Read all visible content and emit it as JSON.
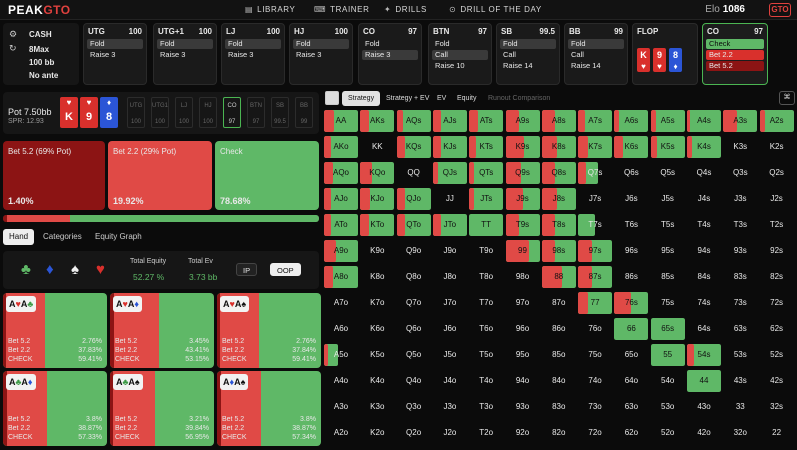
{
  "app": {
    "logo_left": "PEAK",
    "logo_right": "GTO"
  },
  "nav": [
    {
      "icon": "library-icon",
      "glyph": "▤",
      "label": "LIBRARY"
    },
    {
      "icon": "trainer-icon",
      "glyph": "⌨",
      "label": "TRAINER"
    },
    {
      "icon": "drills-icon",
      "glyph": "✦",
      "label": "DRILLS"
    },
    {
      "icon": "drill-of-day-icon",
      "glyph": "⊙",
      "label": "DRILL OF THE DAY"
    }
  ],
  "elo": {
    "label": "Elo",
    "value": "1086"
  },
  "badge": "GTO",
  "game": {
    "type": "CASH",
    "max": "8Max",
    "stacks": "100 bb",
    "ante": "No ante"
  },
  "seats": [
    {
      "pos": "UTG",
      "stack": "100",
      "actions": [
        "Fold",
        "Raise 3"
      ],
      "hl": 0
    },
    {
      "pos": "UTG+1",
      "stack": "100",
      "actions": [
        "Fold",
        "Raise 3"
      ],
      "hl": 0
    },
    {
      "pos": "LJ",
      "stack": "100",
      "actions": [
        "Fold",
        "Raise 3"
      ],
      "hl": 0
    },
    {
      "pos": "HJ",
      "stack": "100",
      "actions": [
        "Fold",
        "Raise 3"
      ],
      "hl": 0
    },
    {
      "pos": "CO",
      "stack": "97",
      "actions": [
        "Fold",
        "Raise 3"
      ],
      "hl": 1
    },
    {
      "pos": "BTN",
      "stack": "97",
      "actions": [
        "Fold",
        "Call",
        "Raise 10"
      ],
      "hl": 1
    },
    {
      "pos": "SB",
      "stack": "99.5",
      "actions": [
        "Fold",
        "Call",
        "Raise 14"
      ],
      "hl": 0
    },
    {
      "pos": "BB",
      "stack": "99",
      "actions": [
        "Fold",
        "Call",
        "Raise 14"
      ],
      "hl": 0
    }
  ],
  "flop": {
    "label": "FLOP",
    "cards": [
      {
        "rank": "K",
        "suit": "♥",
        "color": "#d9302c"
      },
      {
        "rank": "9",
        "suit": "♥",
        "color": "#d9302c"
      },
      {
        "rank": "8",
        "suit": "♦",
        "color": "#2b55d6"
      }
    ]
  },
  "current": {
    "pos": "CO",
    "stack": "97",
    "actions": [
      "Check",
      "Bet 2.2",
      "Bet 5.2"
    ]
  },
  "pot": {
    "label": "Pot",
    "value": "7.50bb",
    "spr": "SPR: 12.93"
  },
  "positions": [
    {
      "name": "UTG",
      "stack": "100"
    },
    {
      "name": "UTG1",
      "stack": "100"
    },
    {
      "name": "LJ",
      "stack": "100"
    },
    {
      "name": "HJ",
      "stack": "100"
    },
    {
      "name": "CO",
      "stack": "97"
    },
    {
      "name": "BTN",
      "stack": "97"
    },
    {
      "name": "SB",
      "stack": "99.5"
    },
    {
      "name": "BB",
      "stack": "99"
    }
  ],
  "strategy": [
    {
      "label": "Bet 5.2 (69% Pot)",
      "pct": "1.40%",
      "value": 1.4,
      "color": "#8c1414"
    },
    {
      "label": "Bet 2.2 (29% Pot)",
      "pct": "19.92%",
      "value": 19.92,
      "color": "#e04a46"
    },
    {
      "label": "Check",
      "pct": "78.68%",
      "value": 78.68,
      "color": "#5fb867"
    }
  ],
  "tabs": [
    "Hand",
    "Categories",
    "Equity Graph"
  ],
  "equity": {
    "eq_label": "Total Equity",
    "eq_value": "52.27 %",
    "ev_label": "Total Ev",
    "ev_value": "3.73 bb",
    "ip": "IP",
    "oop": "OOP"
  },
  "suits": [
    {
      "glyph": "♣",
      "color": "#5fb867"
    },
    {
      "glyph": "♦",
      "color": "#2b55d6"
    },
    {
      "glyph": "♠",
      "color": "#f0f0f0"
    },
    {
      "glyph": "♥",
      "color": "#d9302c"
    }
  ],
  "combos": [
    {
      "c1": "♥",
      "c1col": "#d9302c",
      "c2": "♣",
      "c2col": "#3c9a45",
      "b52": "2.76%",
      "b22": "37.83%",
      "chk": "59.41%",
      "f1": 2.76,
      "f2": 37.83
    },
    {
      "c1": "♥",
      "c1col": "#d9302c",
      "c2": "♦",
      "c2col": "#2b55d6",
      "b52": "3.45%",
      "b22": "43.41%",
      "chk": "53.15%",
      "f1": 3.45,
      "f2": 43.41
    },
    {
      "c1": "♥",
      "c1col": "#d9302c",
      "c2": "♠",
      "c2col": "#111",
      "b52": "2.76%",
      "b22": "37.84%",
      "chk": "59.41%",
      "f1": 2.76,
      "f2": 37.84
    },
    {
      "c1": "♣",
      "c1col": "#3c9a45",
      "c2": "♦",
      "c2col": "#2b55d6",
      "b52": "3.8%",
      "b22": "38.87%",
      "chk": "57.33%",
      "f1": 3.8,
      "f2": 38.87
    },
    {
      "c1": "♣",
      "c1col": "#3c9a45",
      "c2": "♠",
      "c2col": "#111",
      "b52": "3.21%",
      "b22": "39.84%",
      "chk": "56.95%",
      "f1": 3.21,
      "f2": 39.84
    },
    {
      "c1": "♦",
      "c1col": "#2b55d6",
      "c2": "♠",
      "c2col": "#111",
      "b52": "3.8%",
      "b22": "38.87%",
      "chk": "57.34%",
      "f1": 3.8,
      "f2": 38.87
    }
  ],
  "combo_labels": {
    "rank": "A",
    "b52": "Bet 5.2",
    "b22": "Bet 2.2",
    "chk": "CHECK"
  },
  "right_tabs": {
    "strategy": "Strategy",
    "strat_ev": "Strategy + EV",
    "ev": "EV",
    "equity": "Equity",
    "runout": "Runout Comparison"
  },
  "grid": {
    "ranks": [
      "A",
      "K",
      "Q",
      "J",
      "T",
      "9",
      "8",
      "7",
      "6",
      "5",
      "4",
      "3",
      "2"
    ],
    "range_rows": [
      [
        [
          0,
          30,
          100
        ],
        [
          0,
          25,
          100
        ],
        [
          0,
          20,
          100
        ],
        [
          0,
          25,
          100
        ],
        [
          0,
          25,
          100
        ],
        [
          0,
          40,
          100
        ],
        [
          0,
          40,
          100
        ],
        [
          0,
          20,
          100
        ],
        [
          0,
          15,
          100
        ],
        [
          0,
          15,
          100
        ],
        [
          0,
          10,
          100
        ],
        [
          0,
          40,
          100
        ],
        [
          0,
          15,
          100
        ]
      ],
      [
        [
          0,
          20,
          100
        ],
        [
          0,
          0,
          0
        ],
        [
          0,
          25,
          100
        ],
        [
          0,
          25,
          100
        ],
        [
          0,
          20,
          100
        ],
        [
          0,
          55,
          100
        ],
        [
          0,
          45,
          100
        ],
        [
          0,
          30,
          100
        ],
        [
          0,
          25,
          100
        ],
        [
          0,
          20,
          100
        ],
        [
          0,
          15,
          100
        ],
        [
          0,
          0,
          0
        ],
        [
          0,
          0,
          0
        ]
      ],
      [
        [
          0,
          25,
          100
        ],
        [
          0,
          35,
          100
        ],
        [
          0,
          0,
          0
        ],
        [
          0,
          15,
          100
        ],
        [
          0,
          15,
          100
        ],
        [
          0,
          45,
          100
        ],
        [
          0,
          40,
          100
        ],
        [
          0,
          40,
          60
        ],
        [
          0,
          0,
          0
        ],
        [
          0,
          0,
          0
        ],
        [
          0,
          0,
          0
        ],
        [
          0,
          0,
          0
        ],
        [
          0,
          0,
          0
        ]
      ],
      [
        [
          0,
          20,
          100
        ],
        [
          0,
          30,
          100
        ],
        [
          0,
          25,
          100
        ],
        [
          0,
          0,
          0
        ],
        [
          0,
          15,
          100
        ],
        [
          0,
          50,
          100
        ],
        [
          0,
          45,
          100
        ],
        [
          0,
          0,
          0
        ],
        [
          0,
          0,
          0
        ],
        [
          0,
          0,
          0
        ],
        [
          0,
          0,
          0
        ],
        [
          0,
          0,
          0
        ],
        [
          0,
          0,
          0
        ]
      ],
      [
        [
          0,
          20,
          100
        ],
        [
          0,
          25,
          100
        ],
        [
          0,
          25,
          100
        ],
        [
          0,
          25,
          100
        ],
        [
          0,
          0,
          100
        ],
        [
          0,
          40,
          100
        ],
        [
          0,
          40,
          100
        ],
        [
          0,
          0,
          50
        ],
        [
          0,
          0,
          0
        ],
        [
          0,
          0,
          0
        ],
        [
          0,
          0,
          0
        ],
        [
          0,
          0,
          0
        ],
        [
          0,
          0,
          0
        ]
      ],
      [
        [
          0,
          35,
          100
        ],
        [
          0,
          0,
          0
        ],
        [
          0,
          0,
          0
        ],
        [
          0,
          0,
          0
        ],
        [
          0,
          0,
          0
        ],
        [
          0,
          70,
          100
        ],
        [
          0,
          40,
          100
        ],
        [
          0,
          40,
          100
        ],
        [
          0,
          0,
          0
        ],
        [
          0,
          0,
          0
        ],
        [
          0,
          0,
          0
        ],
        [
          0,
          0,
          0
        ],
        [
          0,
          0,
          0
        ]
      ],
      [
        [
          0,
          25,
          100
        ],
        [
          0,
          0,
          0
        ],
        [
          0,
          0,
          0
        ],
        [
          0,
          0,
          0
        ],
        [
          0,
          0,
          0
        ],
        [
          0,
          0,
          0
        ],
        [
          0,
          60,
          100
        ],
        [
          0,
          40,
          100
        ],
        [
          0,
          0,
          0
        ],
        [
          0,
          0,
          0
        ],
        [
          0,
          0,
          0
        ],
        [
          0,
          0,
          0
        ],
        [
          0,
          0,
          0
        ]
      ],
      [
        [
          0,
          0,
          0
        ],
        [
          0,
          0,
          0
        ],
        [
          0,
          0,
          0
        ],
        [
          0,
          0,
          0
        ],
        [
          0,
          0,
          0
        ],
        [
          0,
          0,
          0
        ],
        [
          0,
          0,
          0
        ],
        [
          0,
          30,
          100
        ],
        [
          0,
          50,
          100
        ],
        [
          0,
          0,
          0
        ],
        [
          0,
          0,
          0
        ],
        [
          0,
          0,
          0
        ],
        [
          0,
          0,
          0
        ]
      ],
      [
        [
          0,
          0,
          0
        ],
        [
          0,
          0,
          0
        ],
        [
          0,
          0,
          0
        ],
        [
          0,
          0,
          0
        ],
        [
          0,
          0,
          0
        ],
        [
          0,
          0,
          0
        ],
        [
          0,
          0,
          0
        ],
        [
          0,
          0,
          0
        ],
        [
          0,
          0,
          100
        ],
        [
          0,
          0,
          100
        ],
        [
          0,
          0,
          0
        ],
        [
          0,
          0,
          0
        ],
        [
          0,
          0,
          0
        ]
      ],
      [
        [
          0,
          30,
          40
        ],
        [
          0,
          0,
          0
        ],
        [
          0,
          0,
          0
        ],
        [
          0,
          0,
          0
        ],
        [
          0,
          0,
          0
        ],
        [
          0,
          0,
          0
        ],
        [
          0,
          0,
          0
        ],
        [
          0,
          0,
          0
        ],
        [
          0,
          0,
          0
        ],
        [
          0,
          0,
          100
        ],
        [
          0,
          20,
          100
        ],
        [
          0,
          0,
          0
        ],
        [
          0,
          0,
          0
        ]
      ],
      [
        [
          0,
          0,
          0
        ],
        [
          0,
          0,
          0
        ],
        [
          0,
          0,
          0
        ],
        [
          0,
          0,
          0
        ],
        [
          0,
          0,
          0
        ],
        [
          0,
          0,
          0
        ],
        [
          0,
          0,
          0
        ],
        [
          0,
          0,
          0
        ],
        [
          0,
          0,
          0
        ],
        [
          0,
          0,
          0
        ],
        [
          0,
          0,
          100
        ],
        [
          0,
          0,
          0
        ],
        [
          0,
          0,
          0
        ]
      ],
      [
        [
          0,
          0,
          0
        ],
        [
          0,
          0,
          0
        ],
        [
          0,
          0,
          0
        ],
        [
          0,
          0,
          0
        ],
        [
          0,
          0,
          0
        ],
        [
          0,
          0,
          0
        ],
        [
          0,
          0,
          0
        ],
        [
          0,
          0,
          0
        ],
        [
          0,
          0,
          0
        ],
        [
          0,
          0,
          0
        ],
        [
          0,
          0,
          0
        ],
        [
          0,
          0,
          0
        ],
        [
          0,
          0,
          0
        ]
      ],
      [
        [
          0,
          0,
          0
        ],
        [
          0,
          0,
          0
        ],
        [
          0,
          0,
          0
        ],
        [
          0,
          0,
          0
        ],
        [
          0,
          0,
          0
        ],
        [
          0,
          0,
          0
        ],
        [
          0,
          0,
          0
        ],
        [
          0,
          0,
          0
        ],
        [
          0,
          0,
          0
        ],
        [
          0,
          0,
          0
        ],
        [
          0,
          0,
          0
        ],
        [
          0,
          0,
          0
        ],
        [
          0,
          0,
          0
        ]
      ]
    ]
  },
  "colors": {
    "red": "#e04a46",
    "dark_red": "#8c1414",
    "green": "#5fb867",
    "accent": "#4bb552"
  }
}
